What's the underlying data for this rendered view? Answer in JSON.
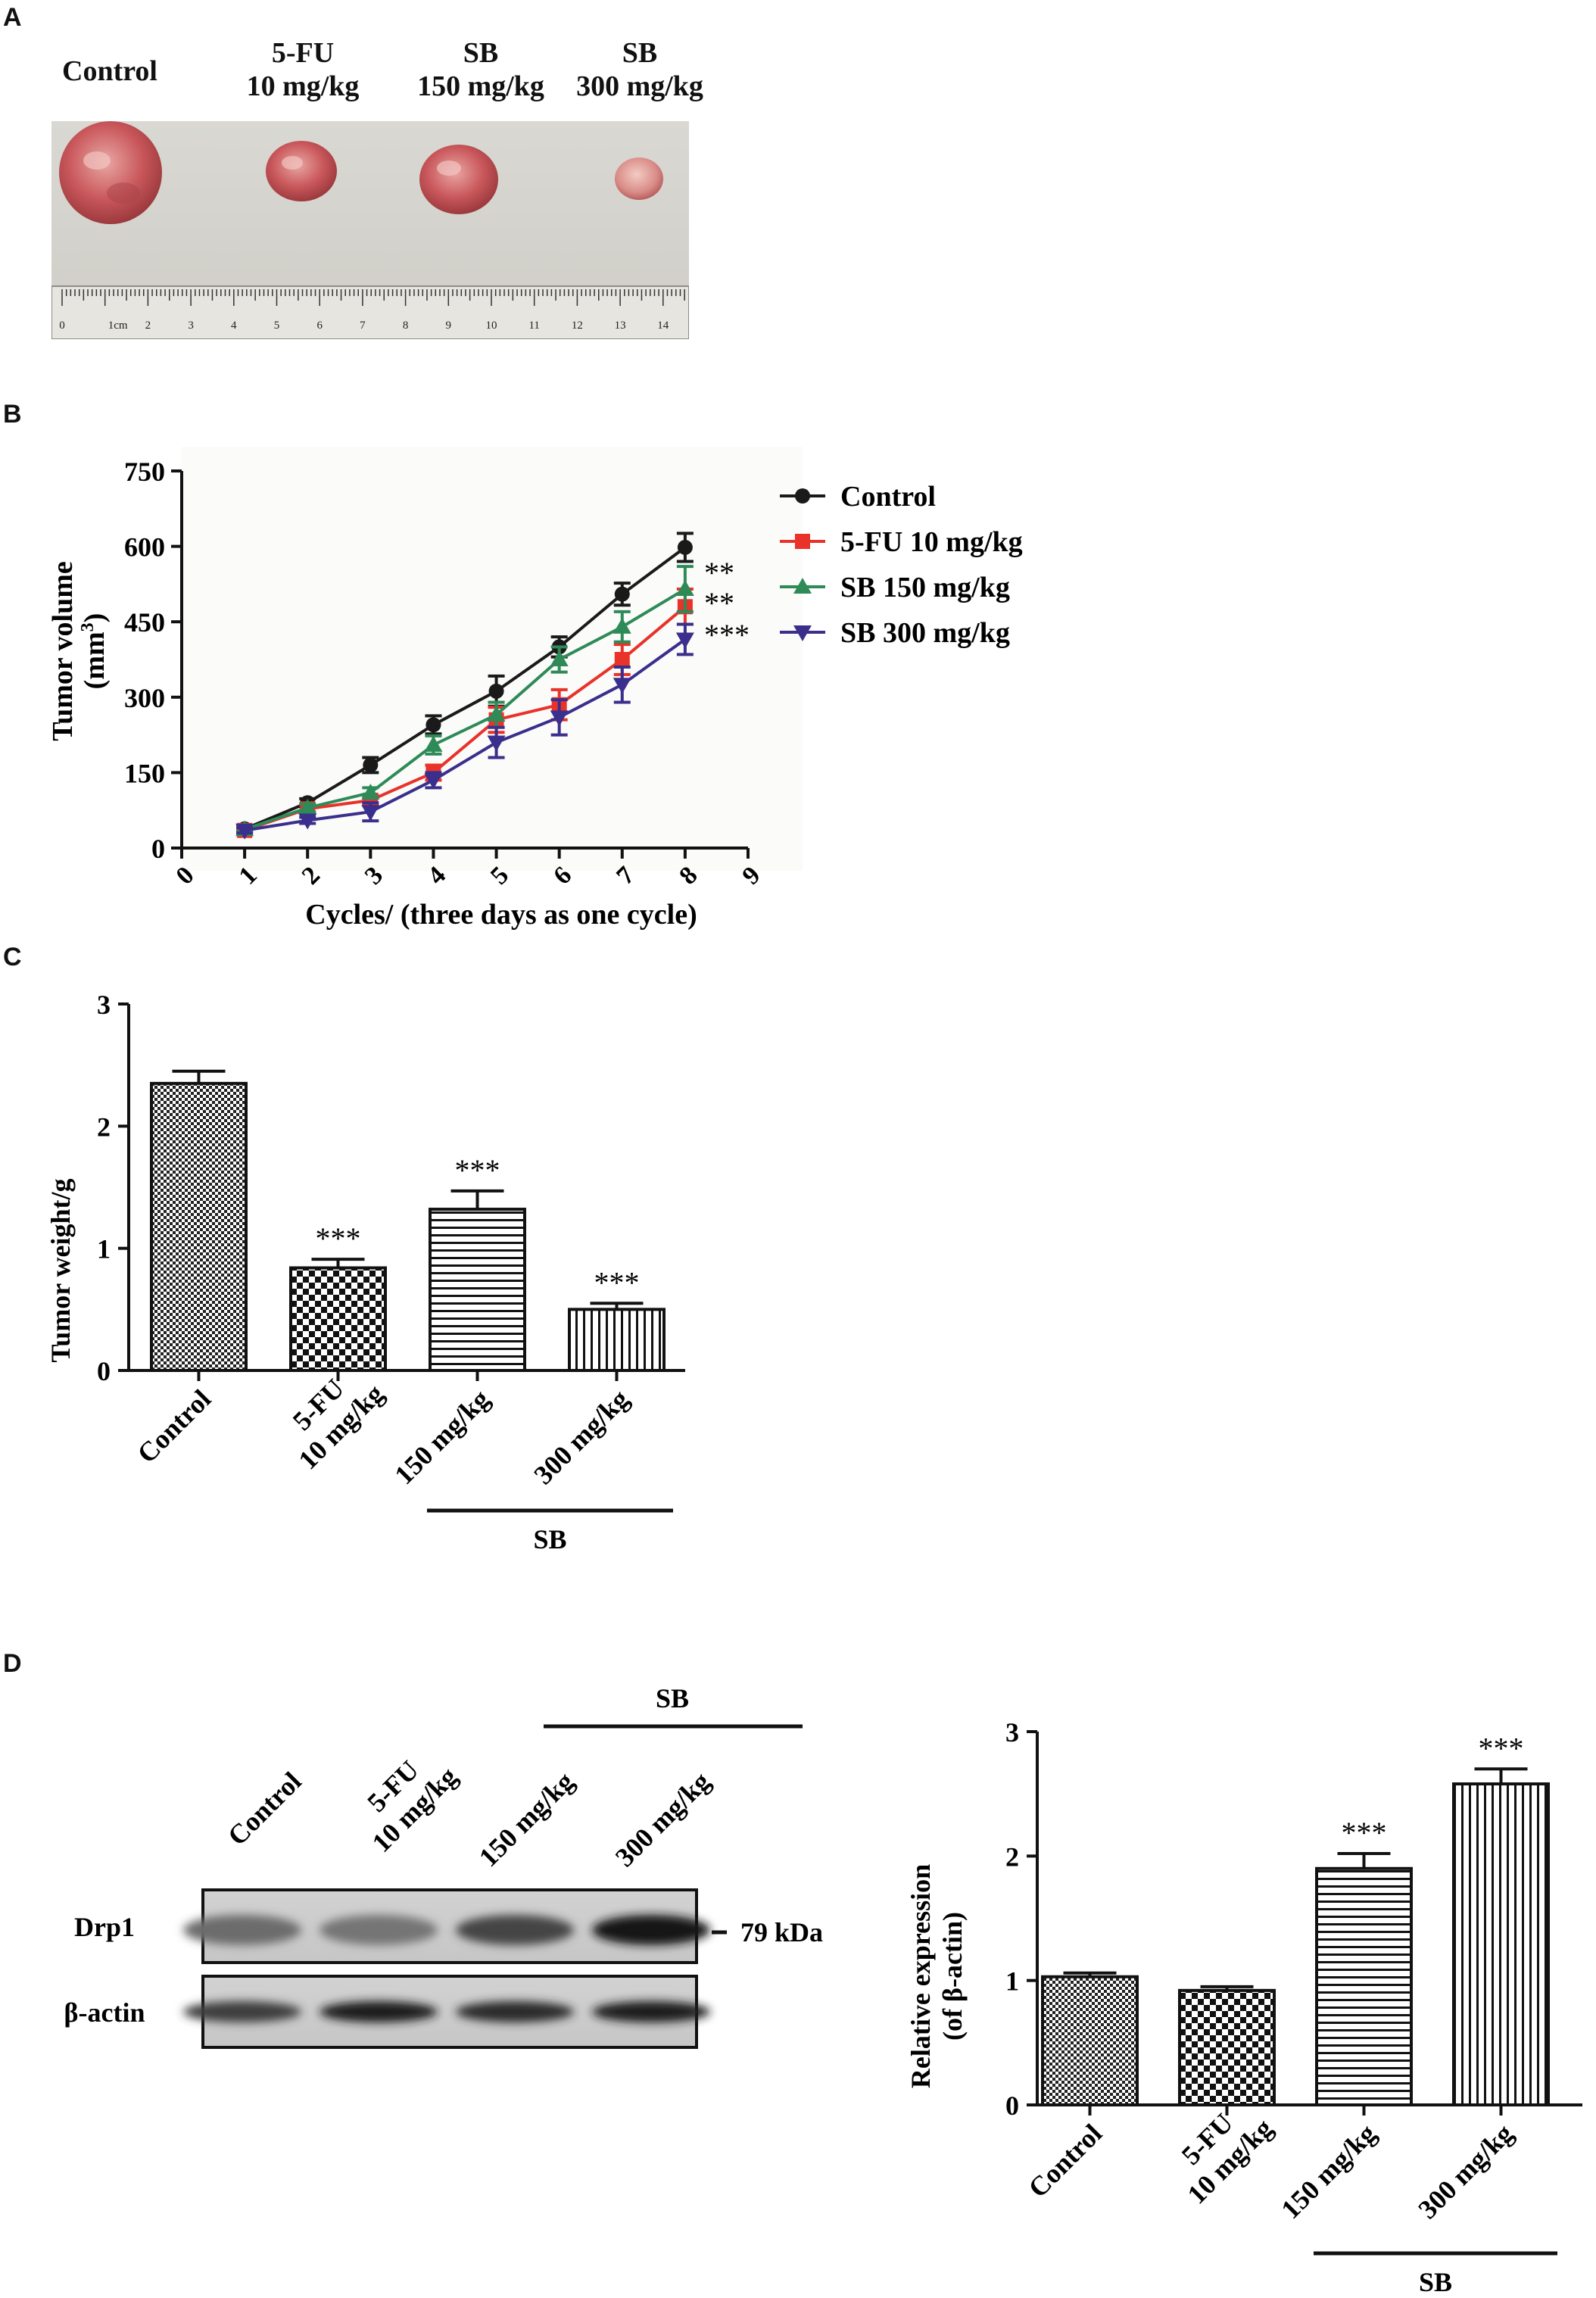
{
  "panels": {
    "a": "A",
    "b": "B",
    "c": "C",
    "d": "D"
  },
  "panel_a": {
    "groups": [
      {
        "line1": "Control",
        "line2": ""
      },
      {
        "line1": "5-FU",
        "line2": "10 mg/kg"
      },
      {
        "line1": "SB",
        "line2": "150 mg/kg"
      },
      {
        "line1": "SB",
        "line2": "300 mg/kg"
      }
    ],
    "ruler_labels": [
      "0",
      "1cm",
      "2",
      "3",
      "4",
      "5",
      "6",
      "7",
      "8",
      "9",
      "10",
      "11",
      "12",
      "13",
      "14"
    ]
  },
  "chart_data": [
    {
      "id": "tumor-volume",
      "type": "line",
      "xlabel": "Cycles/ (three days as one cycle)",
      "ylabel_line1": "Tumor volume",
      "ylabel_line2": "(mm",
      "ylabel_sup": "3",
      "ylabel_close": ")",
      "xlim": [
        0,
        9
      ],
      "ylim": [
        0,
        750
      ],
      "xticks": [
        0,
        1,
        2,
        3,
        4,
        5,
        6,
        7,
        8,
        9
      ],
      "yticks": [
        0,
        150,
        300,
        450,
        600,
        750
      ],
      "x": [
        1,
        2,
        3,
        4,
        5,
        6,
        7,
        8
      ],
      "series": [
        {
          "name": "Control",
          "color": "#1a1a1a",
          "marker": "circle",
          "values": [
            38,
            90,
            165,
            245,
            312,
            400,
            505,
            598
          ],
          "errors": [
            5,
            8,
            15,
            18,
            30,
            20,
            22,
            28
          ],
          "sig": ""
        },
        {
          "name": "5-FU 10 mg/kg",
          "color": "#e8322a",
          "marker": "square",
          "values": [
            35,
            78,
            95,
            150,
            255,
            285,
            375,
            480
          ],
          "errors": [
            5,
            8,
            10,
            15,
            25,
            30,
            30,
            35
          ],
          "sig": "**"
        },
        {
          "name": "SB 150 mg/kg",
          "color": "#2e8b57",
          "marker": "triangle",
          "values": [
            37,
            80,
            110,
            205,
            265,
            375,
            440,
            515
          ],
          "errors": [
            5,
            8,
            10,
            18,
            25,
            25,
            30,
            45
          ],
          "sig": "**"
        },
        {
          "name": "SB 300 mg/kg",
          "color": "#3a2f8c",
          "marker": "triangle-down",
          "values": [
            35,
            55,
            72,
            135,
            210,
            260,
            325,
            415
          ],
          "errors": [
            5,
            6,
            18,
            15,
            30,
            35,
            35,
            30
          ],
          "sig": "***"
        }
      ]
    },
    {
      "id": "tumor-weight",
      "type": "bar",
      "ylabel": "Tumor weight/g",
      "ylim": [
        0,
        3
      ],
      "yticks": [
        0,
        1,
        2,
        3
      ],
      "categories": [
        {
          "line1": "Control",
          "line2": ""
        },
        {
          "line1": "5-FU",
          "line2": "10 mg/kg"
        },
        {
          "line1": "150 mg/kg",
          "line2": ""
        },
        {
          "line1": "300 mg/kg",
          "line2": ""
        }
      ],
      "values": [
        2.35,
        0.84,
        1.32,
        0.5
      ],
      "errors": [
        0.1,
        0.07,
        0.15,
        0.05
      ],
      "patterns": [
        "checker-fine",
        "checker-coarse",
        "hlines",
        "vlines"
      ],
      "sig": [
        "",
        "***",
        "***",
        "***"
      ],
      "group_label": "SB"
    },
    {
      "id": "relative-expression",
      "type": "bar",
      "ylabel_line1": "Relative expression",
      "ylabel_line2": "(of β-actin)",
      "ylim": [
        0,
        3
      ],
      "yticks": [
        0,
        1,
        2,
        3
      ],
      "categories": [
        {
          "line1": "Control",
          "line2": ""
        },
        {
          "line1": "5-FU",
          "line2": "10 mg/kg"
        },
        {
          "line1": "150 mg/kg",
          "line2": ""
        },
        {
          "line1": "300 mg/kg",
          "line2": ""
        }
      ],
      "values": [
        1.03,
        0.92,
        1.9,
        2.58
      ],
      "errors": [
        0.03,
        0.03,
        0.12,
        0.12
      ],
      "patterns": [
        "checker-fine",
        "checker-coarse",
        "hlines",
        "vlines"
      ],
      "sig": [
        "",
        "",
        "***",
        "***"
      ],
      "group_label": "SB"
    }
  ],
  "western_blot": {
    "group_label": "SB",
    "lanes": [
      {
        "line1": "Control",
        "line2": ""
      },
      {
        "line1": "5-FU",
        "line2": "10 mg/kg"
      },
      {
        "line1": "150 mg/kg",
        "line2": ""
      },
      {
        "line1": "300 mg/kg",
        "line2": ""
      }
    ],
    "rows": [
      {
        "label": "Drp1",
        "marker": "79 kDa",
        "intensities": [
          0.45,
          0.4,
          0.7,
          1.0
        ]
      },
      {
        "label": "β-actin",
        "marker": "",
        "intensities": [
          0.75,
          0.95,
          0.85,
          0.95
        ]
      }
    ]
  }
}
